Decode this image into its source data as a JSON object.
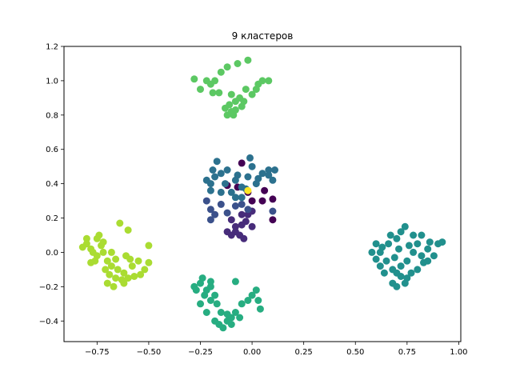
{
  "chart_data": {
    "type": "scatter",
    "title": "9 кластеров",
    "xlabel": "",
    "ylabel": "",
    "xlim": [
      -0.91,
      1.01
    ],
    "ylim": [
      -0.52,
      1.2
    ],
    "xticks": [
      -0.75,
      -0.5,
      -0.25,
      0.0,
      0.25,
      0.5,
      0.75,
      1.0
    ],
    "xtick_labels": [
      "−0.75",
      "−0.50",
      "−0.25",
      "0.00",
      "0.25",
      "0.50",
      "0.75",
      "1.00"
    ],
    "yticks": [
      -0.4,
      -0.2,
      0.0,
      0.2,
      0.4,
      0.6,
      0.8,
      1.0,
      1.2
    ],
    "ytick_labels": [
      "−0.4",
      "−0.2",
      "0.0",
      "0.2",
      "0.4",
      "0.6",
      "0.8",
      "1.0",
      "1.2"
    ],
    "grid": false,
    "series": [
      {
        "color": "#440154",
        "points": [
          [
            -0.05,
            0.52
          ],
          [
            0.1,
            0.31
          ],
          [
            -0.07,
            0.38
          ],
          [
            0.0,
            0.3
          ],
          [
            0.05,
            0.3
          ],
          [
            0.1,
            0.19
          ],
          [
            -0.12,
            0.39
          ],
          [
            0.06,
            0.36
          ],
          [
            -0.02,
            0.35
          ]
        ]
      },
      {
        "color": "#472c7a",
        "points": [
          [
            -0.05,
            0.16
          ],
          [
            -0.08,
            0.12
          ],
          [
            -0.03,
            0.18
          ],
          [
            -0.1,
            0.1
          ],
          [
            -0.06,
            0.1
          ],
          [
            0.0,
            0.15
          ],
          [
            -0.12,
            0.12
          ],
          [
            -0.04,
            0.08
          ],
          [
            -0.02,
            0.22
          ],
          [
            -0.08,
            0.15
          ],
          [
            0.0,
            0.24
          ],
          [
            -0.05,
            0.22
          ],
          [
            -0.1,
            0.19
          ]
        ]
      },
      {
        "color": "#3b518b",
        "points": [
          [
            -0.2,
            0.25
          ],
          [
            -0.22,
            0.3
          ],
          [
            -0.2,
            0.19
          ],
          [
            -0.15,
            0.28
          ],
          [
            -0.12,
            0.23
          ],
          [
            -0.08,
            0.27
          ],
          [
            -0.05,
            0.28
          ],
          [
            0.1,
            0.24
          ],
          [
            -0.02,
            0.25
          ],
          [
            -0.18,
            0.22
          ]
        ]
      },
      {
        "color": "#2c718e",
        "points": [
          [
            -0.2,
            0.4
          ],
          [
            -0.18,
            0.44
          ],
          [
            -0.15,
            0.46
          ],
          [
            -0.12,
            0.48
          ],
          [
            -0.08,
            0.42
          ],
          [
            -0.05,
            0.38
          ],
          [
            -0.02,
            0.44
          ],
          [
            0.02,
            0.4
          ],
          [
            0.05,
            0.46
          ],
          [
            0.08,
            0.48
          ],
          [
            0.1,
            0.42
          ],
          [
            -0.1,
            0.35
          ],
          [
            0.0,
            0.5
          ],
          [
            -0.17,
            0.53
          ],
          [
            -0.2,
            0.36
          ],
          [
            -0.22,
            0.42
          ],
          [
            -0.13,
            0.4
          ],
          [
            -0.07,
            0.45
          ],
          [
            0.03,
            0.43
          ],
          [
            0.08,
            0.45
          ],
          [
            -0.03,
            0.37
          ],
          [
            -0.05,
            0.32
          ],
          [
            -0.08,
            0.32
          ],
          [
            -0.15,
            0.35
          ],
          [
            0.11,
            0.48
          ],
          [
            -0.01,
            0.55
          ],
          [
            -0.19,
            0.48
          ]
        ]
      },
      {
        "color": "#21908d",
        "points": [
          [
            0.6,
            0.05
          ],
          [
            0.62,
            0.0
          ],
          [
            0.65,
            -0.05
          ],
          [
            0.68,
            -0.1
          ],
          [
            0.7,
            -0.12
          ],
          [
            0.72,
            -0.08
          ],
          [
            0.75,
            -0.05
          ],
          [
            0.78,
            0.0
          ],
          [
            0.8,
            0.05
          ],
          [
            0.82,
            0.1
          ],
          [
            0.85,
            0.02
          ],
          [
            0.88,
            -0.02
          ],
          [
            0.9,
            0.05
          ],
          [
            0.7,
            0.08
          ],
          [
            0.72,
            0.12
          ],
          [
            0.74,
            0.15
          ],
          [
            0.66,
            0.05
          ],
          [
            0.64,
            -0.12
          ],
          [
            0.68,
            -0.18
          ],
          [
            0.7,
            -0.2
          ],
          [
            0.75,
            -0.15
          ],
          [
            0.8,
            -0.1
          ],
          [
            0.85,
            -0.05
          ],
          [
            0.62,
            -0.08
          ],
          [
            0.58,
            0.0
          ],
          [
            0.72,
            -0.14
          ],
          [
            0.77,
            -0.12
          ],
          [
            0.82,
            -0.02
          ],
          [
            0.86,
            0.06
          ],
          [
            0.92,
            0.06
          ],
          [
            0.6,
            -0.04
          ],
          [
            0.67,
            0.1
          ],
          [
            0.78,
            0.1
          ],
          [
            0.83,
            -0.06
          ],
          [
            0.74,
            -0.18
          ],
          [
            0.69,
            -0.03
          ],
          [
            0.63,
            0.03
          ],
          [
            0.71,
            0.02
          ],
          [
            0.76,
            0.04
          ]
        ]
      },
      {
        "color": "#27ad81",
        "points": [
          [
            -0.28,
            -0.2
          ],
          [
            -0.25,
            -0.18
          ],
          [
            -0.22,
            -0.22
          ],
          [
            -0.2,
            -0.2
          ],
          [
            -0.18,
            -0.25
          ],
          [
            -0.15,
            -0.35
          ],
          [
            -0.12,
            -0.4
          ],
          [
            -0.1,
            -0.38
          ],
          [
            -0.08,
            -0.35
          ],
          [
            -0.05,
            -0.3
          ],
          [
            -0.02,
            -0.28
          ],
          [
            0.0,
            -0.25
          ],
          [
            0.02,
            -0.22
          ],
          [
            0.03,
            -0.28
          ],
          [
            -0.2,
            -0.28
          ],
          [
            -0.23,
            -0.25
          ],
          [
            -0.16,
            -0.42
          ],
          [
            -0.14,
            -0.44
          ],
          [
            -0.18,
            -0.4
          ],
          [
            -0.1,
            -0.42
          ],
          [
            -0.06,
            -0.38
          ],
          [
            -0.25,
            -0.3
          ],
          [
            -0.22,
            -0.35
          ],
          [
            -0.27,
            -0.22
          ],
          [
            -0.24,
            -0.15
          ],
          [
            -0.2,
            -0.17
          ],
          [
            -0.17,
            -0.3
          ],
          [
            -0.12,
            -0.36
          ],
          [
            -0.08,
            -0.17
          ],
          [
            0.04,
            -0.33
          ]
        ]
      },
      {
        "color": "#5cc863",
        "points": [
          [
            -0.25,
            0.95
          ],
          [
            -0.2,
            0.98
          ],
          [
            -0.18,
            1.0
          ],
          [
            -0.15,
            1.05
          ],
          [
            -0.12,
            1.08
          ],
          [
            -0.1,
            0.92
          ],
          [
            -0.08,
            0.88
          ],
          [
            -0.05,
            0.85
          ],
          [
            -0.1,
            0.82
          ],
          [
            -0.12,
            0.8
          ],
          [
            -0.08,
            0.83
          ],
          [
            -0.06,
            0.9
          ],
          [
            -0.03,
            0.95
          ],
          [
            0.0,
            0.92
          ],
          [
            0.03,
            0.98
          ],
          [
            0.05,
            1.0
          ],
          [
            0.08,
            1.0
          ],
          [
            -0.02,
            1.12
          ],
          [
            -0.07,
            1.1
          ],
          [
            -0.22,
            1.0
          ],
          [
            -0.28,
            1.01
          ],
          [
            -0.11,
            0.86
          ],
          [
            -0.09,
            0.8
          ],
          [
            -0.13,
            0.84
          ],
          [
            -0.04,
            0.88
          ],
          [
            0.02,
            0.95
          ],
          [
            -0.16,
            0.93
          ],
          [
            -0.19,
            0.93
          ]
        ]
      },
      {
        "color": "#aadc32",
        "points": [
          [
            -0.82,
            0.03
          ],
          [
            -0.8,
            0.05
          ],
          [
            -0.78,
            0.02
          ],
          [
            -0.75,
            -0.02
          ],
          [
            -0.72,
            0.0
          ],
          [
            -0.7,
            -0.05
          ],
          [
            -0.68,
            -0.08
          ],
          [
            -0.65,
            -0.1
          ],
          [
            -0.62,
            -0.12
          ],
          [
            -0.6,
            -0.15
          ],
          [
            -0.58,
            -0.08
          ],
          [
            -0.55,
            -0.05
          ],
          [
            -0.52,
            -0.1
          ],
          [
            -0.5,
            -0.06
          ],
          [
            -0.5,
            0.04
          ],
          [
            -0.6,
            0.13
          ],
          [
            -0.64,
            0.17
          ],
          [
            -0.7,
            -0.18
          ],
          [
            -0.67,
            -0.2
          ],
          [
            -0.63,
            -0.16
          ],
          [
            -0.78,
            -0.06
          ],
          [
            -0.74,
            0.1
          ],
          [
            -0.72,
            0.06
          ],
          [
            -0.8,
            0.08
          ],
          [
            -0.76,
            -0.05
          ],
          [
            -0.69,
            -0.13
          ],
          [
            -0.66,
            -0.04
          ],
          [
            -0.61,
            -0.02
          ],
          [
            -0.57,
            -0.14
          ],
          [
            -0.71,
            -0.1
          ],
          [
            -0.73,
            0.04
          ],
          [
            -0.77,
            0.0
          ],
          [
            -0.66,
            -0.15
          ],
          [
            -0.62,
            -0.18
          ],
          [
            -0.59,
            -0.04
          ],
          [
            -0.54,
            -0.13
          ],
          [
            -0.68,
            0.0
          ],
          [
            -0.75,
            0.08
          ]
        ]
      },
      {
        "color": "#fde725",
        "points": [
          [
            -0.02,
            0.36
          ]
        ]
      }
    ]
  }
}
